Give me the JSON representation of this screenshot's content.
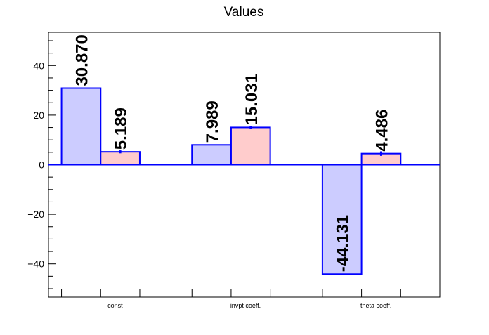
{
  "chart_data": {
    "type": "bar",
    "title": "Values",
    "xlabel": "",
    "ylabel": "",
    "categories": [
      "const",
      "invpt coeff.",
      "theta coeff."
    ],
    "ylim": [
      -53.4,
      53.4
    ],
    "yticks": [
      -40,
      -20,
      0,
      20,
      40
    ],
    "ytick_labels": [
      "−40",
      "−20",
      "0",
      "20",
      "40"
    ],
    "series": [
      {
        "values": [
          30.87,
          7.989,
          -44.131
        ],
        "labels": [
          "30.870",
          "7.989",
          "-44.131"
        ],
        "errors": [
          0,
          0,
          0
        ],
        "fill": "#ccccff",
        "stroke": "#0000ff"
      },
      {
        "values": [
          5.189,
          15.031,
          4.486
        ],
        "labels": [
          "5.189",
          "15.031",
          "4.486"
        ],
        "errors": [
          0.6,
          0.6,
          0.9
        ],
        "fill": "#ffcccc",
        "stroke": "#0000ff"
      }
    ],
    "grid": false,
    "colors": {
      "axis": "#000000",
      "bar_outline": "#0000ff",
      "zero_line": "#0000ff"
    }
  }
}
